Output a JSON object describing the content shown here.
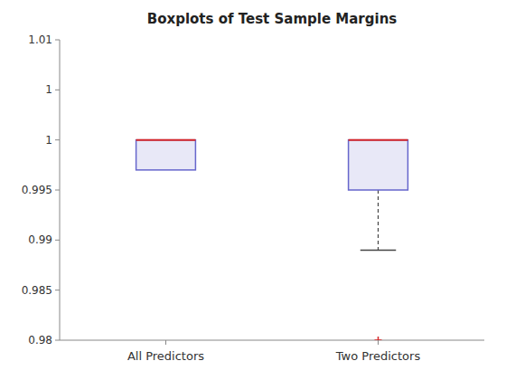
{
  "chart_data": {
    "type": "box",
    "title": "Boxplots of Test Sample Margins",
    "categories": [
      "All Predictors",
      "Two Predictors"
    ],
    "boxes": [
      {
        "q1": 0.997,
        "median": 1.0,
        "q3": 1.0,
        "whisker_low": 0.997,
        "whisker_high": 1.0,
        "outliers": []
      },
      {
        "q1": 0.995,
        "median": 1.0,
        "q3": 1.0,
        "whisker_low": 0.989,
        "whisker_high": 1.0,
        "outliers": [
          0.98
        ]
      }
    ],
    "color": "#6666CC",
    "ylim": [
      0.98,
      1.01
    ],
    "yticks": [
      0.98,
      0.985,
      0.99,
      0.995,
      1,
      {
        "value": 1.005,
        "label": "1"
      },
      1.01
    ],
    "grid": false
  }
}
